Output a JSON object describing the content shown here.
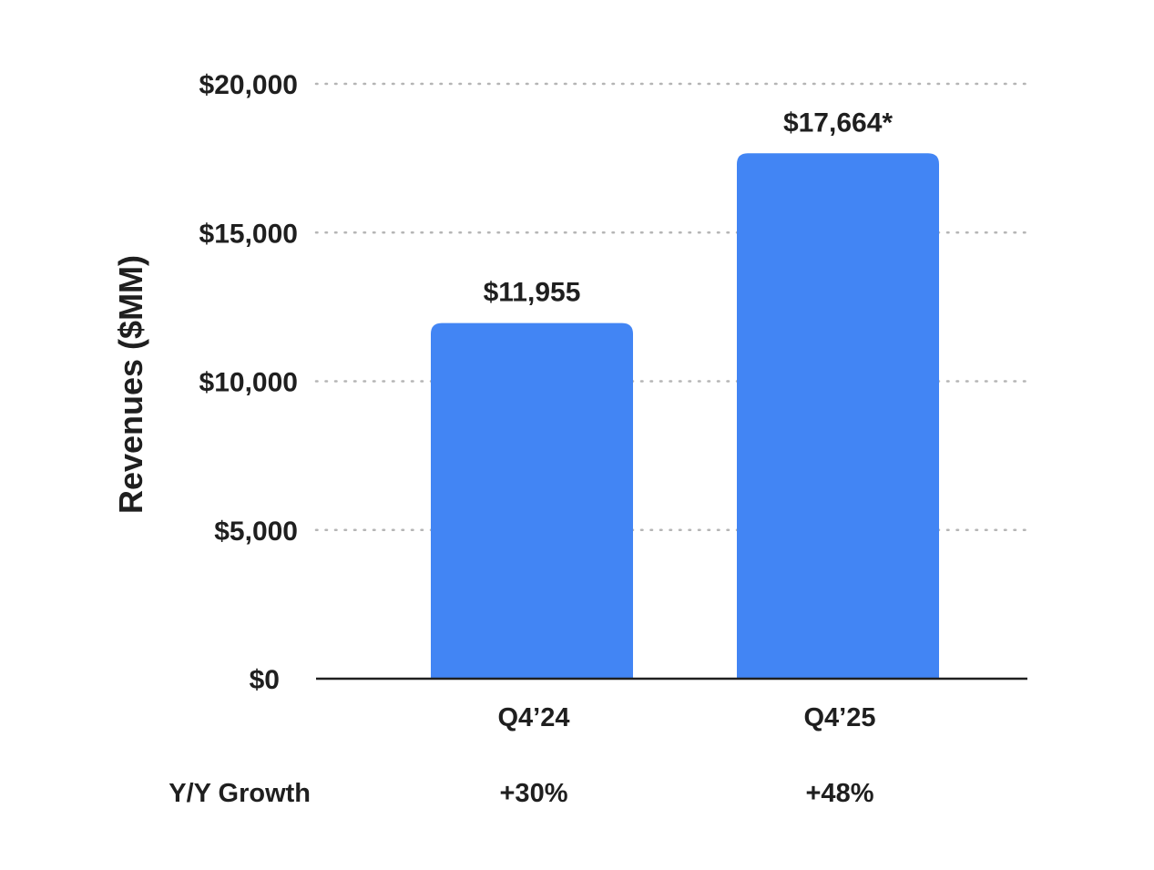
{
  "chart_data": {
    "type": "bar",
    "categories": [
      "Q4’24",
      "Q4’25"
    ],
    "values": [
      11955,
      17664
    ],
    "data_labels": [
      "$11,955",
      "$17,664*"
    ],
    "ylabel": "Revenues ($MM)",
    "ylim": [
      0,
      20000
    ],
    "yticks": [
      0,
      5000,
      10000,
      15000,
      20000
    ],
    "ytick_labels": [
      "$0",
      "$5,000",
      "$10,000",
      "$15,000",
      "$20,000"
    ],
    "grid": "horizontal dotted",
    "bar_color": "#4285f4"
  },
  "growth": {
    "label": "Y/Y Growth",
    "values": [
      "+30%",
      "+48%"
    ]
  }
}
